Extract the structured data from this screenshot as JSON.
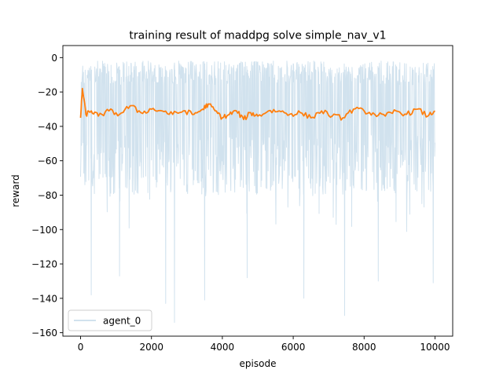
{
  "chart_data": {
    "type": "line",
    "title": "training result of maddpg solve simple_nav_v1",
    "xlabel": "episode",
    "ylabel": "reward",
    "xlim": [
      -500,
      10500
    ],
    "ylim": [
      -162,
      7
    ],
    "x_ticks": [
      0,
      2000,
      4000,
      6000,
      8000,
      10000
    ],
    "y_ticks": [
      0,
      -20,
      -40,
      -60,
      -80,
      -100,
      -120,
      -140,
      -160
    ],
    "x_tick_labels": [
      "0",
      "2000",
      "4000",
      "6000",
      "8000",
      "10000"
    ],
    "y_tick_labels": [
      "0",
      "−20",
      "−40",
      "−60",
      "−80",
      "−100",
      "−120",
      "−140",
      "−160"
    ],
    "grid": false,
    "legend_placement": "lower-left",
    "series": [
      {
        "name": "agent_0",
        "role": "raw episode reward",
        "color": "#d1e2ee",
        "episodes": [
          0,
          10000
        ],
        "typical_min": -85,
        "typical_max": -2,
        "extreme_dips": [
          {
            "x": 300,
            "y": -138
          },
          {
            "x": 1100,
            "y": -127
          },
          {
            "x": 2400,
            "y": -143
          },
          {
            "x": 2650,
            "y": -154
          },
          {
            "x": 3500,
            "y": -141
          },
          {
            "x": 4700,
            "y": -128
          },
          {
            "x": 6300,
            "y": -140
          },
          {
            "x": 7450,
            "y": -150
          },
          {
            "x": 8400,
            "y": -130
          },
          {
            "x": 9950,
            "y": -131
          }
        ]
      },
      {
        "role": "smoothed reward",
        "color": "#ff7f0e",
        "x": [
          0,
          50,
          150,
          300,
          500,
          800,
          1100,
          1400,
          1700,
          2000,
          2300,
          2600,
          2900,
          3200,
          3450,
          3600,
          3800,
          4000,
          4200,
          4400,
          4600,
          4800,
          5000,
          5300,
          5600,
          5900,
          6200,
          6500,
          6800,
          7100,
          7400,
          7700,
          8000,
          8300,
          8600,
          8900,
          9200,
          9500,
          9800,
          10000
        ],
        "y": [
          -35,
          -18,
          -33,
          -31,
          -34,
          -31,
          -33,
          -28,
          -32,
          -30,
          -31,
          -33,
          -31,
          -33,
          -30,
          -27,
          -31,
          -35,
          -33,
          -31,
          -36,
          -32,
          -34,
          -31,
          -31,
          -33,
          -32,
          -35,
          -31,
          -34,
          -35,
          -30,
          -31,
          -33,
          -34,
          -31,
          -33,
          -30,
          -34,
          -31
        ]
      }
    ]
  }
}
